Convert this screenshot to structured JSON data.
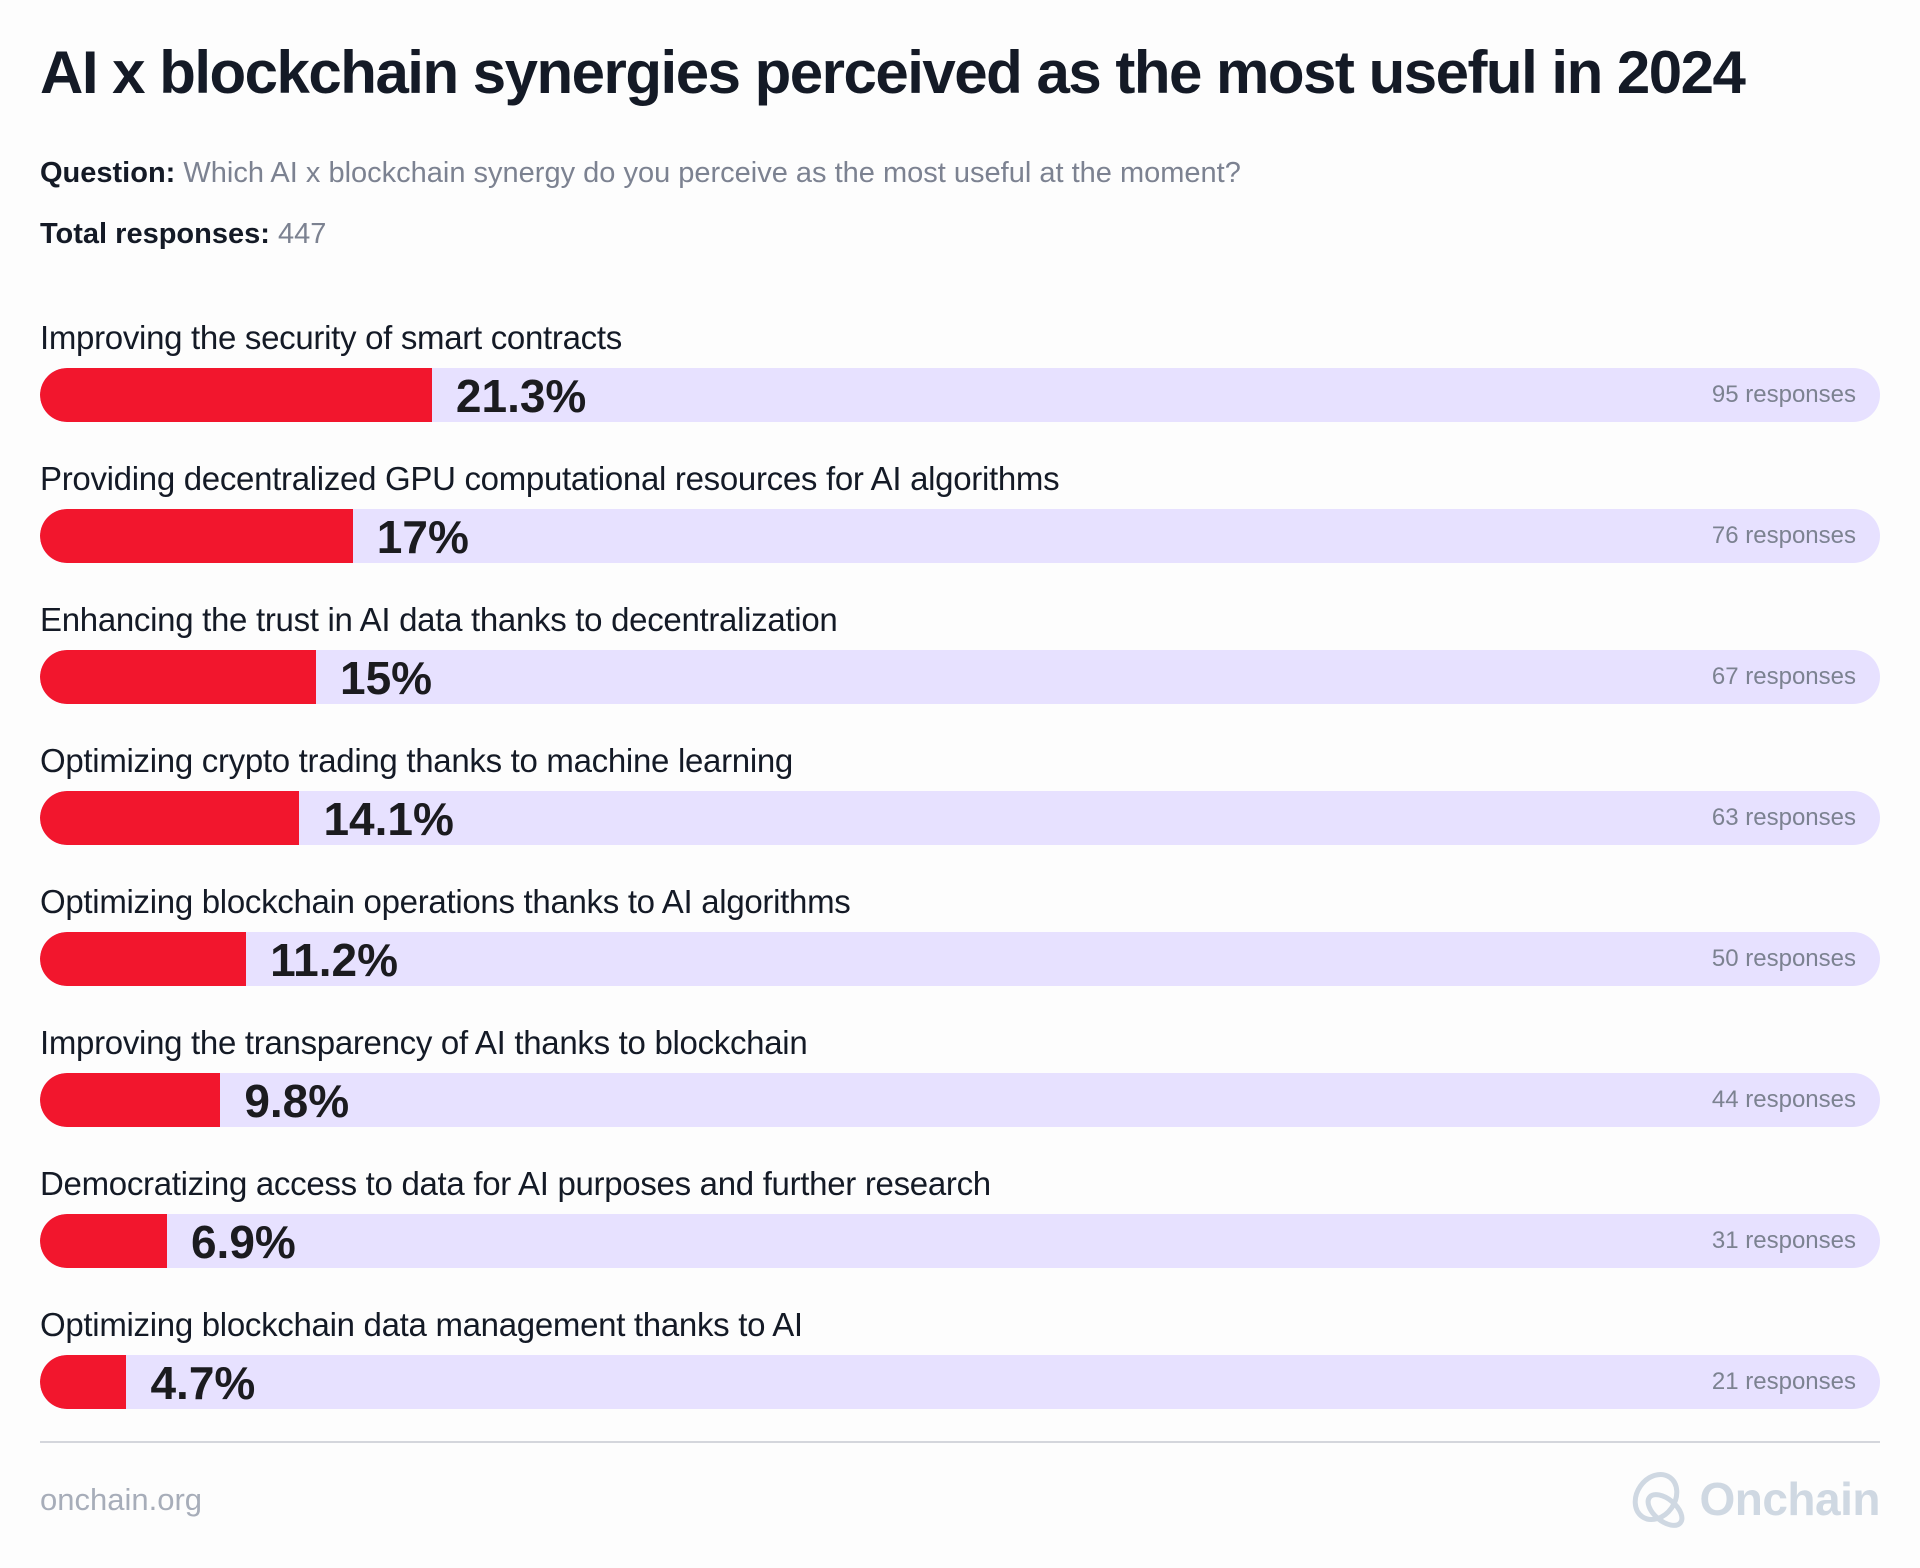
{
  "title": "AI x blockchain synergies perceived as the most useful in 2024",
  "question_label": "Question:",
  "question": "Which AI x blockchain synergy do you perceive as the most useful at the moment?",
  "total_label": "Total responses:",
  "total": "447",
  "colors": {
    "bar": "#f2162d",
    "track": "#e7e1ff"
  },
  "chart_data": {
    "type": "bar",
    "orientation": "horizontal",
    "categories": [
      "Improving the security of smart contracts",
      "Providing decentralized GPU computational resources for AI algorithms",
      "Enhancing the trust in AI data thanks to decentralization",
      "Optimizing crypto trading thanks to machine learning",
      "Optimizing blockchain operations thanks to AI algorithms",
      "Improving the transparency of AI thanks to blockchain",
      "Democratizing access to data for AI purposes and further research",
      "Optimizing blockchain data management thanks to AI"
    ],
    "values": [
      21.3,
      17,
      15,
      14.1,
      11.2,
      9.8,
      6.9,
      4.7
    ],
    "value_labels": [
      "21.3%",
      "17%",
      "15%",
      "14.1%",
      "11.2%",
      "9.8%",
      "6.9%",
      "4.7%"
    ],
    "responses": [
      "95 responses",
      "76 responses",
      "67 responses",
      "63 responses",
      "50 responses",
      "44 responses",
      "31 responses",
      "21 responses"
    ],
    "xlim": [
      0,
      100
    ]
  },
  "footer": {
    "url": "onchain.org",
    "brand": "Onchain"
  }
}
